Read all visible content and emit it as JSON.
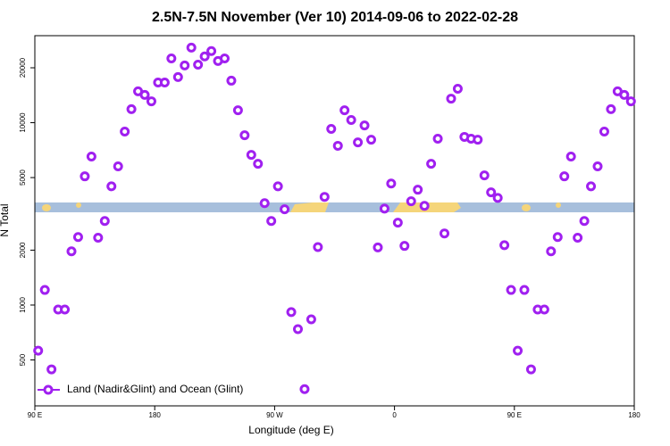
{
  "chart_data": {
    "type": "scatter",
    "title": "2.5N-7.5N November (Ver 10)   2014-09-06 to 2022-02-28",
    "x_label": "Longitude (deg E)",
    "y_label": "N Total",
    "x": [
      92.5,
      97.5,
      102.5,
      107.5,
      112.5,
      117.5,
      122.5,
      127.5,
      132.5,
      137.5,
      142.5,
      147.5,
      152.5,
      157.5,
      162.5,
      167.5,
      172.5,
      177.5,
      182.5,
      187.5,
      192.5,
      197.5,
      202.5,
      207.5,
      212.5,
      217.5,
      222.5,
      227.5,
      232.5,
      237.5,
      242.5,
      247.5,
      252.5,
      257.5,
      262.5,
      267.5,
      272.5,
      277.5,
      282.5,
      287.5,
      292.5,
      297.5,
      302.5,
      307.5,
      312.5,
      317.5,
      322.5,
      327.5,
      332.5,
      337.5,
      342.5,
      347.5,
      352.5,
      357.5,
      362.5,
      367.5,
      372.5,
      377.5,
      382.5,
      387.5,
      392.5,
      397.5,
      402.5,
      407.5,
      412.5,
      417.5,
      422.5,
      427.5,
      432.5,
      437.5,
      442.5,
      447.5,
      452.5,
      457.5,
      462.5,
      467.5,
      472.5,
      477.5,
      482.5,
      487.5,
      492.5,
      497.5,
      502.5,
      507.5,
      512.5,
      517.5,
      522.5,
      527.5,
      532.5,
      537.5
    ],
    "series": [
      {
        "name": "Land (Nadir&Glint) and Ocean (Glint)",
        "color": "#a020f0",
        "values": [
          562,
          1210,
          444,
          945,
          945,
          1970,
          2360,
          5080,
          6520,
          2340,
          2890,
          4480,
          5760,
          8940,
          11860,
          14860,
          14200,
          13100,
          16600,
          16600,
          22500,
          17800,
          20600,
          25800,
          20800,
          23100,
          24700,
          21800,
          22500,
          17000,
          11700,
          8530,
          6660,
          5950,
          3620,
          2890,
          4480,
          3350,
          915,
          738,
          346,
          835,
          2080,
          3920,
          9250,
          7470,
          11700,
          10350,
          7800,
          9660,
          8070,
          2070,
          3380,
          4640,
          2830,
          2110,
          3710,
          4290,
          3500,
          5950,
          8170,
          2470,
          13550,
          15350,
          8360,
          8170,
          8070,
          5140,
          4150,
          3870,
          2130,
          1210,
          562,
          1210,
          444,
          945,
          945,
          1970,
          2360,
          5080,
          6520,
          2340,
          2890,
          4480,
          5760,
          8940,
          11860,
          14860,
          14200,
          13100
        ]
      }
    ],
    "xlim": [
      90,
      540
    ],
    "xticks": [
      {
        "value": 90,
        "label": "90 E"
      },
      180,
      {
        "value": 270,
        "label": "90 W"
      },
      {
        "value": 360,
        "label": "0"
      },
      {
        "value": 450,
        "label": "90 E"
      },
      {
        "value": 540,
        "label": "180"
      }
    ],
    "ylim": [
      280,
      30000
    ],
    "yticks": [
      500,
      1000,
      2000,
      5000,
      10000,
      20000
    ],
    "y_log": true,
    "legend": "lower left"
  }
}
